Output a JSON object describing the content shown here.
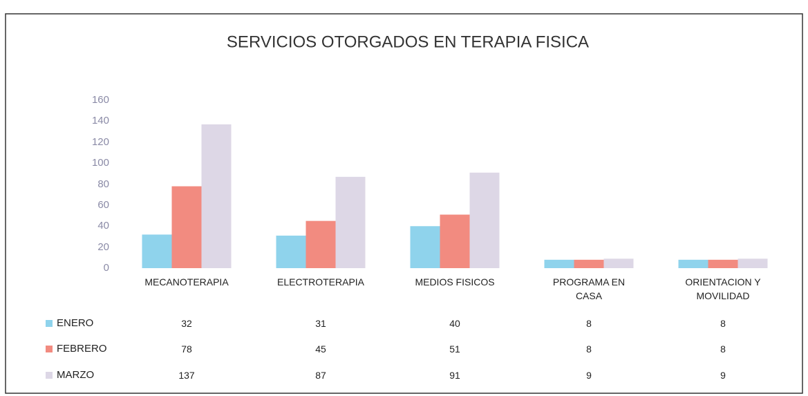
{
  "chart_data": {
    "type": "bar",
    "title": "SERVICIOS OTORGADOS EN TERAPIA FISICA",
    "categories": [
      "MECANOTERAPIA",
      "ELECTROTERAPIA",
      "MEDIOS FISICOS",
      "PROGRAMA EN CASA",
      "ORIENTACION Y MOVILIDAD"
    ],
    "series": [
      {
        "name": "ENERO",
        "color": "#8fd3ec",
        "values": [
          32,
          31,
          40,
          8,
          8
        ]
      },
      {
        "name": "FEBRERO",
        "color": "#f28b80",
        "values": [
          78,
          45,
          51,
          8,
          8
        ]
      },
      {
        "name": "MARZO",
        "color": "#ddd7e6",
        "values": [
          137,
          87,
          91,
          9,
          9
        ]
      }
    ],
    "ylim": [
      0,
      160
    ],
    "yticks": [
      0,
      20,
      40,
      60,
      80,
      100,
      120,
      140,
      160
    ],
    "grid": false
  }
}
